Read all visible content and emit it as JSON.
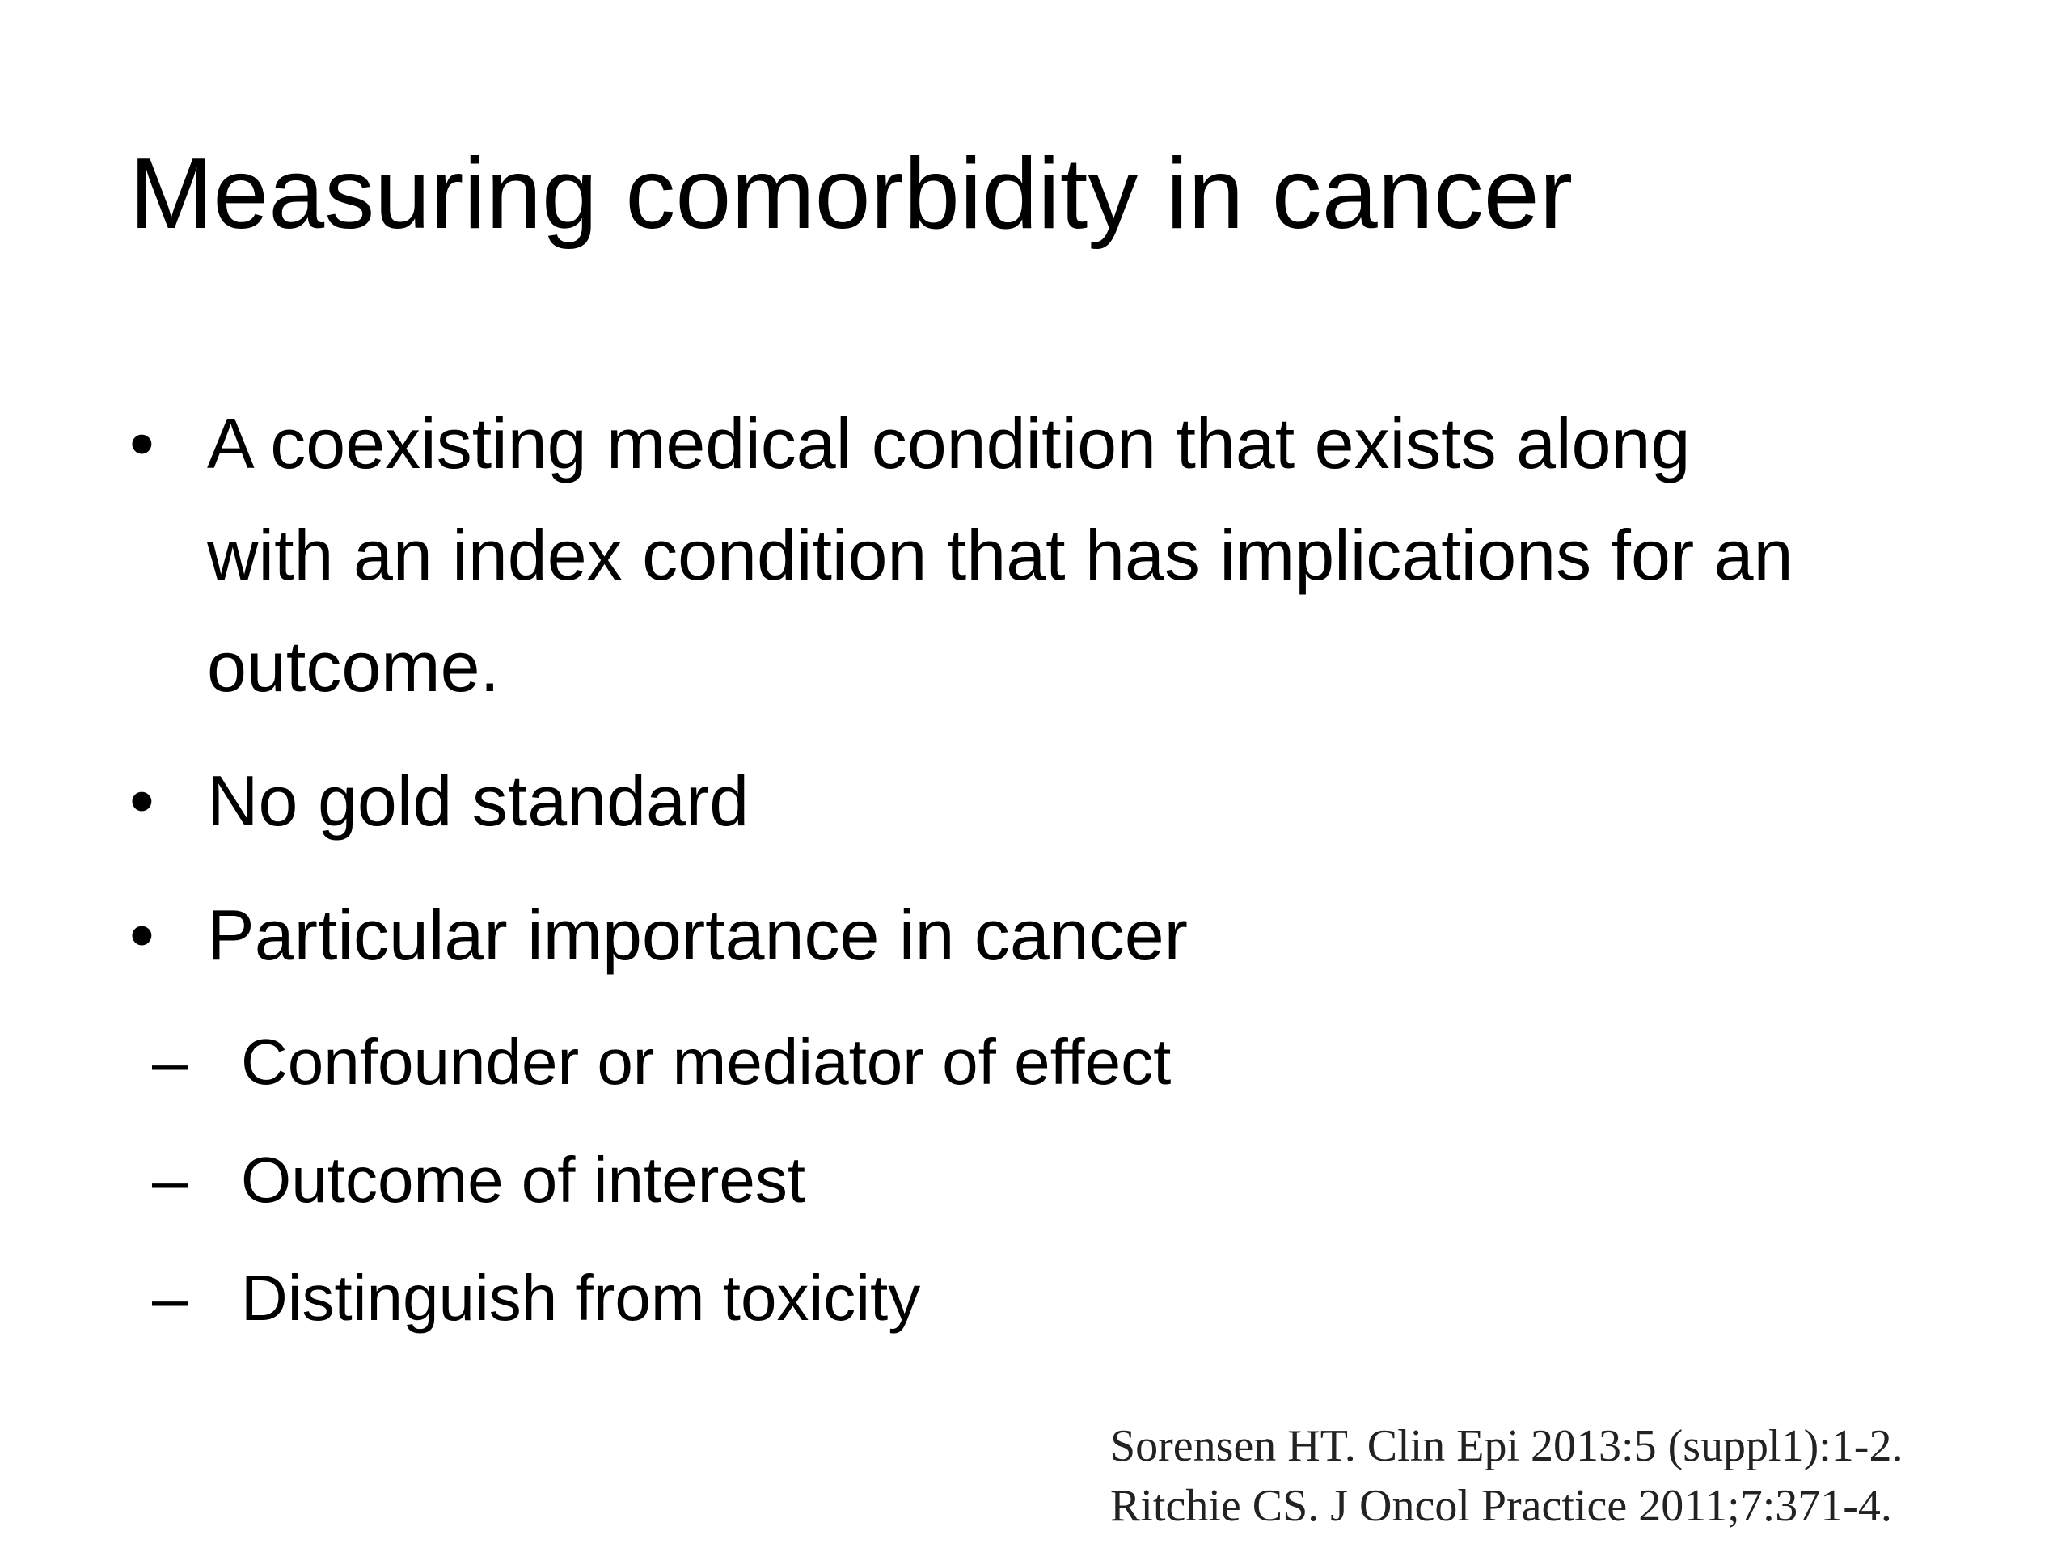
{
  "slide": {
    "title": "Measuring comorbidity in cancer",
    "bullets": [
      {
        "text": "A coexisting medical condition that exists along with an index condition that has implications for an outcome."
      },
      {
        "text": "No gold standard"
      },
      {
        "text": "Particular importance in cancer",
        "sub_bullets": [
          "Confounder or mediator of effect",
          "Outcome of interest",
          "Distinguish from toxicity"
        ]
      }
    ],
    "references": [
      "Sorensen HT. Clin Epi 2013:5 (suppl1):1-2.",
      "Ritchie CS. J Oncol Practice 2011;7:371-4."
    ]
  }
}
